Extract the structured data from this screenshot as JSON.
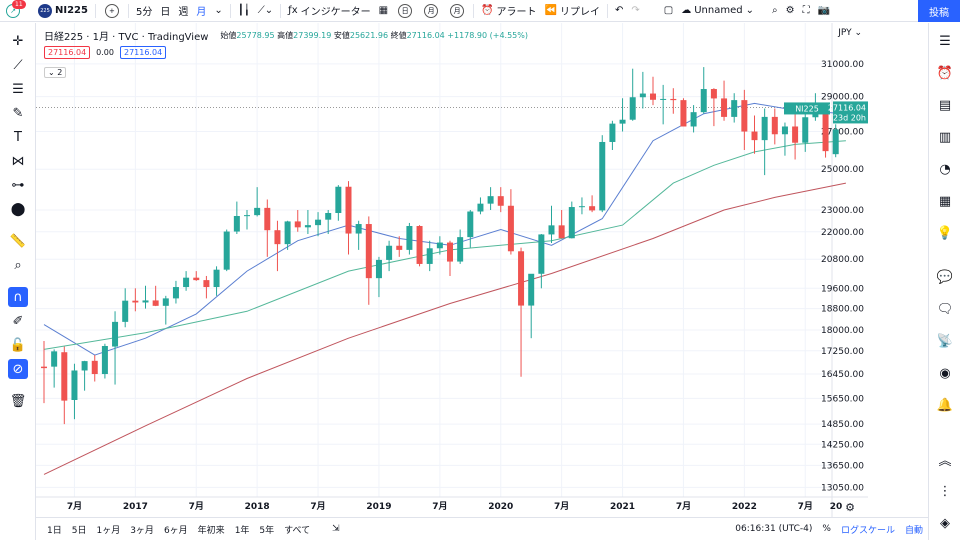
{
  "topbar": {
    "notification_count": "11",
    "symbol": "NI225",
    "symbol_logo": "225",
    "intervals": [
      "5分",
      "日",
      "週",
      "月"
    ],
    "indicators_label": "インジケーター",
    "compare_options": [
      "日",
      "月",
      "月"
    ],
    "alert_label": "アラート",
    "replay_label": "リプレイ",
    "layout_name": "Unnamed",
    "publish_label": "投稿"
  },
  "legend": {
    "title": "日経225 · 1月 · TVC · TradingView",
    "open_label": "始値",
    "open": "25778.95",
    "high_label": "高値",
    "high": "27399.19",
    "low_label": "安値",
    "low": "25621.96",
    "close_label": "終値",
    "close": "27116.04",
    "change": "+1178.90 (+4.55%)",
    "bid": "27116.04",
    "spread": "0.00",
    "ask": "27116.04",
    "indicators_count": "2"
  },
  "price_axis": {
    "currency": "JPY",
    "ticks": [
      "31000.00",
      "29000.00",
      "27000.00",
      "25000.00",
      "23000.00",
      "22000.00",
      "20800.00",
      "19600.00",
      "18800.00",
      "18000.00",
      "17250.00",
      "16450.00",
      "15650.00",
      "14850.00",
      "14250.00",
      "13650.00",
      "13050.00"
    ],
    "symbol_tag": "NI225",
    "last_price": "27116.04",
    "countdown": "23d 20h"
  },
  "time_axis": {
    "labels": [
      "7月",
      "2017",
      "7月",
      "2018",
      "7月",
      "2019",
      "7月",
      "2020",
      "7月",
      "2021",
      "7月",
      "2022",
      "7月",
      "20"
    ]
  },
  "bottombar": {
    "ranges": [
      "1日",
      "5日",
      "1ヶ月",
      "3ヶ月",
      "6ヶ月",
      "年初来",
      "1年",
      "5年",
      "すべて"
    ],
    "time": "06:16:31 (UTC-4)",
    "percent": "%",
    "log": "ログスケール",
    "auto": "自動"
  },
  "colors": {
    "up": "#26a69a",
    "down": "#ef5350",
    "ma_fast": "#5b7fd1",
    "ma_mid": "#54b89a",
    "ma_slow": "#c0555d",
    "accent": "#2962ff"
  },
  "chart_data": {
    "type": "candlestick",
    "interval": "monthly",
    "series": [
      {
        "date": "2016-04",
        "o": 16700,
        "h": 17600,
        "l": 15500,
        "c": 16650
      },
      {
        "date": "2016-05",
        "o": 16700,
        "h": 17300,
        "l": 16000,
        "c": 17230
      },
      {
        "date": "2016-06",
        "o": 17200,
        "h": 17400,
        "l": 14850,
        "c": 15580
      },
      {
        "date": "2016-07",
        "o": 15600,
        "h": 16800,
        "l": 15000,
        "c": 16570
      },
      {
        "date": "2016-08",
        "o": 16570,
        "h": 16900,
        "l": 15900,
        "c": 16890
      },
      {
        "date": "2016-09",
        "o": 16900,
        "h": 17100,
        "l": 16200,
        "c": 16450
      },
      {
        "date": "2016-10",
        "o": 16450,
        "h": 17500,
        "l": 16300,
        "c": 17420
      },
      {
        "date": "2016-11",
        "o": 17400,
        "h": 18700,
        "l": 16100,
        "c": 18300
      },
      {
        "date": "2016-12",
        "o": 18300,
        "h": 19600,
        "l": 18100,
        "c": 19110
      },
      {
        "date": "2017-01",
        "o": 19110,
        "h": 19600,
        "l": 18700,
        "c": 19040
      },
      {
        "date": "2017-02",
        "o": 19040,
        "h": 19700,
        "l": 18800,
        "c": 19120
      },
      {
        "date": "2017-03",
        "o": 19120,
        "h": 19700,
        "l": 18900,
        "c": 18910
      },
      {
        "date": "2017-04",
        "o": 18910,
        "h": 19300,
        "l": 18200,
        "c": 19200
      },
      {
        "date": "2017-05",
        "o": 19200,
        "h": 19900,
        "l": 19000,
        "c": 19650
      },
      {
        "date": "2017-06",
        "o": 19650,
        "h": 20300,
        "l": 19500,
        "c": 20030
      },
      {
        "date": "2017-07",
        "o": 20030,
        "h": 20300,
        "l": 19900,
        "c": 19930
      },
      {
        "date": "2017-08",
        "o": 19930,
        "h": 20100,
        "l": 19200,
        "c": 19650
      },
      {
        "date": "2017-09",
        "o": 19650,
        "h": 20500,
        "l": 19300,
        "c": 20360
      },
      {
        "date": "2017-10",
        "o": 20360,
        "h": 22100,
        "l": 20300,
        "c": 22010
      },
      {
        "date": "2017-11",
        "o": 22010,
        "h": 23400,
        "l": 21900,
        "c": 22720
      },
      {
        "date": "2017-12",
        "o": 22720,
        "h": 23000,
        "l": 22100,
        "c": 22760
      },
      {
        "date": "2018-01",
        "o": 22760,
        "h": 24100,
        "l": 22700,
        "c": 23100
      },
      {
        "date": "2018-02",
        "o": 23100,
        "h": 23500,
        "l": 20900,
        "c": 22070
      },
      {
        "date": "2018-03",
        "o": 22070,
        "h": 22500,
        "l": 20300,
        "c": 21450
      },
      {
        "date": "2018-04",
        "o": 21450,
        "h": 22500,
        "l": 21200,
        "c": 22470
      },
      {
        "date": "2018-05",
        "o": 22470,
        "h": 23000,
        "l": 22000,
        "c": 22200
      },
      {
        "date": "2018-06",
        "o": 22200,
        "h": 23000,
        "l": 21900,
        "c": 22300
      },
      {
        "date": "2018-07",
        "o": 22300,
        "h": 22900,
        "l": 21800,
        "c": 22550
      },
      {
        "date": "2018-08",
        "o": 22550,
        "h": 23000,
        "l": 21900,
        "c": 22860
      },
      {
        "date": "2018-09",
        "o": 22860,
        "h": 24200,
        "l": 22500,
        "c": 24120
      },
      {
        "date": "2018-10",
        "o": 24120,
        "h": 24400,
        "l": 21000,
        "c": 21920
      },
      {
        "date": "2018-11",
        "o": 21920,
        "h": 22500,
        "l": 21200,
        "c": 22350
      },
      {
        "date": "2018-12",
        "o": 22350,
        "h": 22700,
        "l": 18950,
        "c": 20010
      },
      {
        "date": "2019-01",
        "o": 20010,
        "h": 20900,
        "l": 19250,
        "c": 20770
      },
      {
        "date": "2019-02",
        "o": 20770,
        "h": 21600,
        "l": 20300,
        "c": 21380
      },
      {
        "date": "2019-03",
        "o": 21380,
        "h": 21800,
        "l": 20900,
        "c": 21200
      },
      {
        "date": "2019-04",
        "o": 21200,
        "h": 22400,
        "l": 21000,
        "c": 22260
      },
      {
        "date": "2019-05",
        "o": 22260,
        "h": 22300,
        "l": 20500,
        "c": 20600
      },
      {
        "date": "2019-06",
        "o": 20600,
        "h": 21600,
        "l": 20300,
        "c": 21270
      },
      {
        "date": "2019-07",
        "o": 21270,
        "h": 21800,
        "l": 21000,
        "c": 21520
      },
      {
        "date": "2019-08",
        "o": 21520,
        "h": 21600,
        "l": 20100,
        "c": 20700
      },
      {
        "date": "2019-09",
        "o": 20700,
        "h": 22100,
        "l": 20600,
        "c": 21760
      },
      {
        "date": "2019-10",
        "o": 21760,
        "h": 23000,
        "l": 21300,
        "c": 22930
      },
      {
        "date": "2019-11",
        "o": 22930,
        "h": 23600,
        "l": 22800,
        "c": 23300
      },
      {
        "date": "2019-12",
        "o": 23300,
        "h": 24100,
        "l": 23000,
        "c": 23660
      },
      {
        "date": "2020-01",
        "o": 23660,
        "h": 24100,
        "l": 22900,
        "c": 23200
      },
      {
        "date": "2020-02",
        "o": 23200,
        "h": 24000,
        "l": 21000,
        "c": 21140
      },
      {
        "date": "2020-03",
        "o": 21140,
        "h": 21300,
        "l": 16360,
        "c": 18920
      },
      {
        "date": "2020-04",
        "o": 18920,
        "h": 20000,
        "l": 17700,
        "c": 20190
      },
      {
        "date": "2020-05",
        "o": 20190,
        "h": 21900,
        "l": 19600,
        "c": 21880
      },
      {
        "date": "2020-06",
        "o": 21880,
        "h": 23200,
        "l": 21500,
        "c": 22290
      },
      {
        "date": "2020-07",
        "o": 22290,
        "h": 23000,
        "l": 21700,
        "c": 21710
      },
      {
        "date": "2020-08",
        "o": 21710,
        "h": 23400,
        "l": 21700,
        "c": 23140
      },
      {
        "date": "2020-09",
        "o": 23140,
        "h": 23600,
        "l": 22800,
        "c": 23180
      },
      {
        "date": "2020-10",
        "o": 23180,
        "h": 23700,
        "l": 22900,
        "c": 22980
      },
      {
        "date": "2020-11",
        "o": 22980,
        "h": 26800,
        "l": 22900,
        "c": 26430
      },
      {
        "date": "2020-12",
        "o": 26430,
        "h": 27600,
        "l": 26000,
        "c": 27440
      },
      {
        "date": "2021-01",
        "o": 27440,
        "h": 28900,
        "l": 27000,
        "c": 27660
      },
      {
        "date": "2021-02",
        "o": 27660,
        "h": 30700,
        "l": 27600,
        "c": 28960
      },
      {
        "date": "2021-03",
        "o": 28960,
        "h": 30500,
        "l": 28300,
        "c": 29180
      },
      {
        "date": "2021-04",
        "o": 29180,
        "h": 30200,
        "l": 28500,
        "c": 28810
      },
      {
        "date": "2021-05",
        "o": 28810,
        "h": 29700,
        "l": 27400,
        "c": 28860
      },
      {
        "date": "2021-06",
        "o": 28860,
        "h": 29500,
        "l": 28000,
        "c": 28790
      },
      {
        "date": "2021-07",
        "o": 28790,
        "h": 28900,
        "l": 27300,
        "c": 27280
      },
      {
        "date": "2021-08",
        "o": 27280,
        "h": 28500,
        "l": 26950,
        "c": 28090
      },
      {
        "date": "2021-09",
        "o": 28090,
        "h": 30800,
        "l": 28000,
        "c": 29450
      },
      {
        "date": "2021-10",
        "o": 29450,
        "h": 29500,
        "l": 27300,
        "c": 28890
      },
      {
        "date": "2021-11",
        "o": 28890,
        "h": 29960,
        "l": 27600,
        "c": 27820
      },
      {
        "date": "2021-12",
        "o": 27820,
        "h": 29200,
        "l": 27500,
        "c": 28790
      },
      {
        "date": "2022-01",
        "o": 28790,
        "h": 29400,
        "l": 26000,
        "c": 27000
      },
      {
        "date": "2022-02",
        "o": 27000,
        "h": 27900,
        "l": 25800,
        "c": 26530
      },
      {
        "date": "2022-03",
        "o": 26530,
        "h": 28300,
        "l": 24700,
        "c": 27820
      },
      {
        "date": "2022-04",
        "o": 27820,
        "h": 28300,
        "l": 26300,
        "c": 26850
      },
      {
        "date": "2022-05",
        "o": 26850,
        "h": 27500,
        "l": 25700,
        "c": 27280
      },
      {
        "date": "2022-06",
        "o": 27280,
        "h": 28400,
        "l": 25500,
        "c": 26390
      },
      {
        "date": "2022-07",
        "o": 26390,
        "h": 28000,
        "l": 25900,
        "c": 27800
      },
      {
        "date": "2022-08",
        "o": 27800,
        "h": 29200,
        "l": 27600,
        "c": 28090
      },
      {
        "date": "2022-09",
        "o": 28090,
        "h": 28500,
        "l": 25600,
        "c": 25940
      },
      {
        "date": "2022-10",
        "o": 25780,
        "h": 27400,
        "l": 25620,
        "c": 27116
      }
    ],
    "moving_averages": [
      {
        "points": [
          [
            0,
            18200
          ],
          [
            5,
            17100
          ],
          [
            10,
            17700
          ],
          [
            15,
            18600
          ],
          [
            20,
            20300
          ],
          [
            25,
            21600
          ],
          [
            30,
            22300
          ],
          [
            35,
            21700
          ],
          [
            40,
            21400
          ],
          [
            45,
            22100
          ],
          [
            50,
            21400
          ],
          [
            55,
            22600
          ],
          [
            60,
            26500
          ],
          [
            65,
            28000
          ],
          [
            70,
            28600
          ],
          [
            74,
            28200
          ],
          [
            79,
            28000
          ]
        ]
      },
      {
        "points": [
          [
            0,
            17300
          ],
          [
            10,
            17900
          ],
          [
            20,
            18700
          ],
          [
            30,
            20300
          ],
          [
            40,
            21200
          ],
          [
            50,
            21600
          ],
          [
            57,
            22300
          ],
          [
            62,
            24300
          ],
          [
            66,
            25200
          ],
          [
            70,
            25900
          ],
          [
            74,
            26300
          ],
          [
            79,
            26500
          ]
        ]
      },
      {
        "points": [
          [
            0,
            13400
          ],
          [
            10,
            14800
          ],
          [
            20,
            16300
          ],
          [
            30,
            17700
          ],
          [
            40,
            19000
          ],
          [
            50,
            20200
          ],
          [
            60,
            21700
          ],
          [
            67,
            23000
          ],
          [
            72,
            23600
          ],
          [
            79,
            24300
          ]
        ]
      }
    ],
    "ylim": [
      12900,
      31700
    ],
    "xlim": [
      "2016-04",
      "2022-10"
    ],
    "grid": true,
    "scale": "log"
  }
}
